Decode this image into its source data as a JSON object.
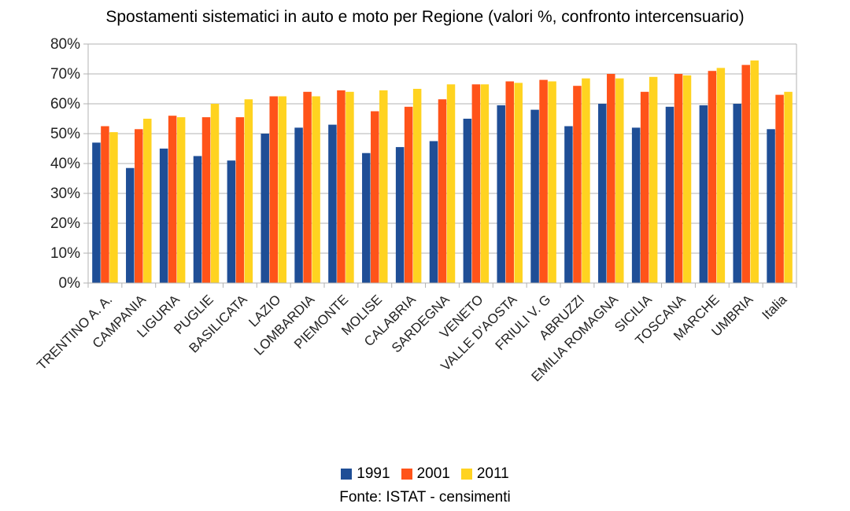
{
  "chart_data": {
    "type": "bar",
    "title": "Spostamenti sistematici in auto e moto per Regione (valori %, confronto intercensuario)",
    "xlabel": "",
    "ylabel": "",
    "ylim": [
      0,
      80
    ],
    "yticks": [
      "0%",
      "10%",
      "20%",
      "30%",
      "40%",
      "50%",
      "60%",
      "70%",
      "80%"
    ],
    "grid": "horizontal",
    "legend": "bottom",
    "categories": [
      "TRENTINO A. A.",
      "CAMPANIA",
      "LIGURIA",
      "PUGLIE",
      "BASILICATA",
      "LAZIO",
      "LOMBARDIA",
      "PIEMONTE",
      "MOLISE",
      "CALABRIA",
      "SARDEGNA",
      "VENETO",
      "VALLE D'AOSTA",
      "FRIULI V. G",
      "ABRUZZI",
      "EMILIA ROMAGNA",
      "SICILIA",
      "TOSCANA",
      "MARCHE",
      "UMBRIA",
      "Italia"
    ],
    "series": [
      {
        "name": "1991",
        "color": "#1f4e96",
        "values": [
          47,
          38.5,
          45,
          42.5,
          41,
          50,
          52,
          53,
          43.5,
          45.5,
          47.5,
          55,
          59.5,
          58,
          52.5,
          60,
          52,
          59,
          59.5,
          60,
          51.5
        ]
      },
      {
        "name": "2001",
        "color": "#ff5319",
        "values": [
          52.5,
          51.5,
          56,
          55.5,
          55.5,
          62.5,
          64,
          64.5,
          57.5,
          59,
          61.5,
          66.5,
          67.5,
          68,
          66,
          70,
          64,
          70,
          71,
          73,
          63
        ]
      },
      {
        "name": "2011",
        "color": "#ffd320",
        "values": [
          50.5,
          55,
          55.5,
          60,
          61.5,
          62.5,
          62.5,
          64,
          64.5,
          65,
          66.5,
          66.5,
          67,
          67.5,
          68.5,
          68.5,
          69,
          69.5,
          72,
          74.5,
          64
        ]
      }
    ],
    "source": "Fonte: ISTAT - censimenti"
  }
}
